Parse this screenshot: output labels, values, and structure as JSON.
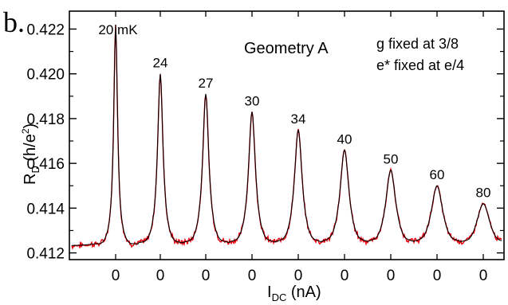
{
  "panel_label": "b.",
  "chart_data": {
    "type": "line",
    "title": "",
    "annotation_main": "Geometry A",
    "annotation_lines": [
      "g fixed at 3/8",
      "e* fixed at e/4"
    ],
    "xlabel": {
      "main": "I",
      "sub": "DC",
      "rest": " (nA)"
    },
    "ylabel": {
      "main": "R",
      "sub": "D",
      "open": " (h/e",
      "sup": "2",
      "close": ")"
    },
    "ylim": [
      0.4117,
      0.4228
    ],
    "yticks": [
      0.412,
      0.414,
      0.416,
      0.418,
      0.42,
      0.422
    ],
    "ytick_labels": [
      "0.412",
      "0.414",
      "0.416",
      "0.418",
      "0.420",
      "0.422"
    ],
    "baseline": 0.4123,
    "grid": false,
    "series": [
      {
        "color": "#000000",
        "style": "fit"
      },
      {
        "color": "#e8000b",
        "style": "data"
      }
    ],
    "peaks": [
      {
        "label": "20 mK",
        "x_label": "0",
        "peak": 0.4222,
        "width": 0.05
      },
      {
        "label": "24",
        "x_label": "0",
        "peak": 0.42,
        "width": 0.07
      },
      {
        "label": "27",
        "x_label": "0",
        "peak": 0.4191,
        "width": 0.08
      },
      {
        "label": "30",
        "x_label": "0",
        "peak": 0.4183,
        "width": 0.09
      },
      {
        "label": "34",
        "x_label": "0",
        "peak": 0.4175,
        "width": 0.1
      },
      {
        "label": "40",
        "x_label": "0",
        "peak": 0.4166,
        "width": 0.115
      },
      {
        "label": "50",
        "x_label": "0",
        "peak": 0.4157,
        "width": 0.13
      },
      {
        "label": "60",
        "x_label": "0",
        "peak": 0.415,
        "width": 0.15
      },
      {
        "label": "80",
        "x_label": "0",
        "peak": 0.4142,
        "width": 0.17
      }
    ]
  }
}
